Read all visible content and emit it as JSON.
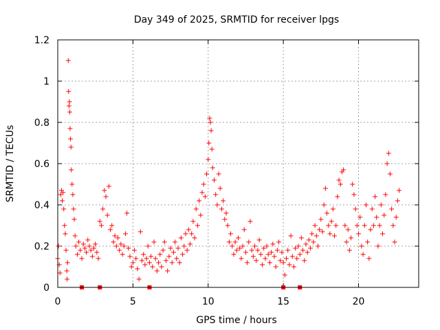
{
  "chart_data": {
    "type": "scatter",
    "title": "Day 349 of 2025, SRMTID for receiver lpgs",
    "xlabel": "GPS time / hours",
    "ylabel": "SRMTID / TECUs",
    "xlim": [
      0,
      24
    ],
    "ylim": [
      0,
      1.2
    ],
    "x_ticks": [
      0,
      5,
      10,
      15,
      20
    ],
    "y_ticks": [
      0,
      0.2,
      0.4,
      0.6,
      0.8,
      1,
      1.2
    ],
    "x_tick_labels": [
      "0",
      "5",
      "10",
      "15",
      "20"
    ],
    "y_tick_labels": [
      "0",
      "0.2",
      "0.4",
      "0.6",
      "0.8",
      "1",
      "1.2"
    ],
    "grid": true,
    "marker": "+",
    "series_color": "#ff0000",
    "series": [
      {
        "name": "SRMTID",
        "points": [
          [
            0.0,
            0.14
          ],
          [
            0.05,
            0.2
          ],
          [
            0.1,
            0.11
          ],
          [
            0.15,
            0.07
          ],
          [
            0.2,
            0.45
          ],
          [
            0.25,
            0.47
          ],
          [
            0.3,
            0.42
          ],
          [
            0.35,
            0.46
          ],
          [
            0.4,
            0.38
          ],
          [
            0.45,
            0.3
          ],
          [
            0.5,
            0.26
          ],
          [
            0.55,
            0.18
          ],
          [
            0.6,
            0.08
          ],
          [
            0.62,
            0.04
          ],
          [
            0.65,
            0.12
          ],
          [
            0.7,
            1.1
          ],
          [
            0.72,
            0.95
          ],
          [
            0.75,
            0.88
          ],
          [
            0.78,
            0.9
          ],
          [
            0.8,
            0.85
          ],
          [
            0.82,
            0.77
          ],
          [
            0.85,
            0.72
          ],
          [
            0.88,
            0.68
          ],
          [
            0.9,
            0.57
          ],
          [
            0.95,
            0.5
          ],
          [
            1.0,
            0.45
          ],
          [
            1.05,
            0.38
          ],
          [
            1.1,
            0.33
          ],
          [
            1.15,
            0.25
          ],
          [
            1.2,
            0.2
          ],
          [
            1.3,
            0.16
          ],
          [
            1.4,
            0.22
          ],
          [
            1.5,
            0.18
          ],
          [
            1.6,
            0.14
          ],
          [
            1.7,
            0.21
          ],
          [
            1.8,
            0.19
          ],
          [
            1.9,
            0.17
          ],
          [
            2.0,
            0.23
          ],
          [
            2.1,
            0.2
          ],
          [
            2.2,
            0.18
          ],
          [
            2.3,
            0.15
          ],
          [
            2.4,
            0.19
          ],
          [
            2.5,
            0.21
          ],
          [
            2.6,
            0.17
          ],
          [
            2.7,
            0.14
          ],
          [
            2.8,
            0.32
          ],
          [
            2.9,
            0.3
          ],
          [
            3.0,
            0.38
          ],
          [
            3.1,
            0.47
          ],
          [
            3.2,
            0.44
          ],
          [
            3.3,
            0.35
          ],
          [
            3.4,
            0.49
          ],
          [
            3.5,
            0.28
          ],
          [
            3.6,
            0.3
          ],
          [
            3.7,
            0.22
          ],
          [
            3.8,
            0.25
          ],
          [
            3.9,
            0.2
          ],
          [
            4.0,
            0.24
          ],
          [
            4.1,
            0.18
          ],
          [
            4.2,
            0.21
          ],
          [
            4.3,
            0.16
          ],
          [
            4.4,
            0.2
          ],
          [
            4.5,
            0.26
          ],
          [
            4.6,
            0.36
          ],
          [
            4.7,
            0.19
          ],
          [
            4.8,
            0.15
          ],
          [
            4.9,
            0.1
          ],
          [
            5.0,
            0.12
          ],
          [
            5.1,
            0.18
          ],
          [
            5.2,
            0.14
          ],
          [
            5.3,
            0.09
          ],
          [
            5.4,
            0.04
          ],
          [
            5.5,
            0.27
          ],
          [
            5.6,
            0.13
          ],
          [
            5.7,
            0.16
          ],
          [
            5.8,
            0.11
          ],
          [
            5.9,
            0.14
          ],
          [
            6.0,
            0.2
          ],
          [
            6.1,
            0.12
          ],
          [
            6.2,
            0.15
          ],
          [
            6.3,
            0.1
          ],
          [
            6.4,
            0.22
          ],
          [
            6.5,
            0.14
          ],
          [
            6.6,
            0.08
          ],
          [
            6.7,
            0.12
          ],
          [
            6.8,
            0.16
          ],
          [
            6.9,
            0.1
          ],
          [
            7.0,
            0.18
          ],
          [
            7.1,
            0.22
          ],
          [
            7.2,
            0.13
          ],
          [
            7.3,
            0.08
          ],
          [
            7.4,
            0.15
          ],
          [
            7.5,
            0.19
          ],
          [
            7.6,
            0.12
          ],
          [
            7.7,
            0.17
          ],
          [
            7.8,
            0.22
          ],
          [
            7.9,
            0.14
          ],
          [
            8.0,
            0.19
          ],
          [
            8.1,
            0.12
          ],
          [
            8.2,
            0.24
          ],
          [
            8.3,
            0.16
          ],
          [
            8.4,
            0.2
          ],
          [
            8.5,
            0.26
          ],
          [
            8.6,
            0.18
          ],
          [
            8.7,
            0.28
          ],
          [
            8.8,
            0.21
          ],
          [
            8.9,
            0.26
          ],
          [
            9.0,
            0.32
          ],
          [
            9.1,
            0.24
          ],
          [
            9.2,
            0.38
          ],
          [
            9.3,
            0.3
          ],
          [
            9.4,
            0.42
          ],
          [
            9.5,
            0.35
          ],
          [
            9.6,
            0.46
          ],
          [
            9.7,
            0.5
          ],
          [
            9.8,
            0.44
          ],
          [
            9.9,
            0.55
          ],
          [
            10.0,
            0.62
          ],
          [
            10.05,
            0.7
          ],
          [
            10.1,
            0.82
          ],
          [
            10.15,
            0.8
          ],
          [
            10.2,
            0.76
          ],
          [
            10.25,
            0.67
          ],
          [
            10.3,
            0.58
          ],
          [
            10.4,
            0.52
          ],
          [
            10.5,
            0.45
          ],
          [
            10.6,
            0.4
          ],
          [
            10.7,
            0.55
          ],
          [
            10.8,
            0.48
          ],
          [
            10.9,
            0.38
          ],
          [
            11.0,
            0.42
          ],
          [
            11.1,
            0.33
          ],
          [
            11.2,
            0.36
          ],
          [
            11.3,
            0.3
          ],
          [
            11.4,
            0.22
          ],
          [
            11.5,
            0.26
          ],
          [
            11.6,
            0.2
          ],
          [
            11.7,
            0.16
          ],
          [
            11.8,
            0.22
          ],
          [
            11.9,
            0.18
          ],
          [
            12.0,
            0.24
          ],
          [
            12.1,
            0.19
          ],
          [
            12.2,
            0.14
          ],
          [
            12.3,
            0.2
          ],
          [
            12.4,
            0.28
          ],
          [
            12.5,
            0.17
          ],
          [
            12.6,
            0.12
          ],
          [
            12.7,
            0.22
          ],
          [
            12.8,
            0.32
          ],
          [
            12.9,
            0.18
          ],
          [
            13.0,
            0.15
          ],
          [
            13.1,
            0.2
          ],
          [
            13.2,
            0.13
          ],
          [
            13.3,
            0.18
          ],
          [
            13.4,
            0.23
          ],
          [
            13.5,
            0.16
          ],
          [
            13.6,
            0.11
          ],
          [
            13.7,
            0.19
          ],
          [
            13.8,
            0.14
          ],
          [
            13.9,
            0.2
          ],
          [
            14.0,
            0.16
          ],
          [
            14.1,
            0.12
          ],
          [
            14.2,
            0.17
          ],
          [
            14.3,
            0.21
          ],
          [
            14.4,
            0.15
          ],
          [
            14.5,
            0.1
          ],
          [
            14.6,
            0.18
          ],
          [
            14.7,
            0.22
          ],
          [
            14.8,
            0.13
          ],
          [
            14.9,
            0.17
          ],
          [
            15.0,
            0.12
          ],
          [
            15.1,
            0.06
          ],
          [
            15.2,
            0.14
          ],
          [
            15.3,
            0.18
          ],
          [
            15.4,
            0.11
          ],
          [
            15.5,
            0.25
          ],
          [
            15.6,
            0.15
          ],
          [
            15.7,
            0.1
          ],
          [
            15.8,
            0.19
          ],
          [
            15.9,
            0.14
          ],
          [
            16.0,
            0.2
          ],
          [
            16.1,
            0.16
          ],
          [
            16.2,
            0.24
          ],
          [
            16.3,
            0.18
          ],
          [
            16.4,
            0.13
          ],
          [
            16.5,
            0.21
          ],
          [
            16.6,
            0.17
          ],
          [
            16.7,
            0.23
          ],
          [
            16.8,
            0.19
          ],
          [
            16.9,
            0.26
          ],
          [
            17.0,
            0.22
          ],
          [
            17.1,
            0.3
          ],
          [
            17.2,
            0.25
          ],
          [
            17.3,
            0.2
          ],
          [
            17.4,
            0.28
          ],
          [
            17.5,
            0.33
          ],
          [
            17.6,
            0.27
          ],
          [
            17.7,
            0.4
          ],
          [
            17.8,
            0.48
          ],
          [
            17.9,
            0.36
          ],
          [
            18.0,
            0.3
          ],
          [
            18.1,
            0.26
          ],
          [
            18.2,
            0.32
          ],
          [
            18.3,
            0.38
          ],
          [
            18.4,
            0.25
          ],
          [
            18.5,
            0.3
          ],
          [
            18.6,
            0.44
          ],
          [
            18.7,
            0.52
          ],
          [
            18.8,
            0.5
          ],
          [
            18.9,
            0.56
          ],
          [
            19.0,
            0.57
          ],
          [
            19.1,
            0.3
          ],
          [
            19.2,
            0.22
          ],
          [
            19.3,
            0.28
          ],
          [
            19.4,
            0.18
          ],
          [
            19.5,
            0.24
          ],
          [
            19.6,
            0.5
          ],
          [
            19.7,
            0.45
          ],
          [
            19.8,
            0.38
          ],
          [
            19.9,
            0.3
          ],
          [
            20.0,
            0.26
          ],
          [
            20.1,
            0.34
          ],
          [
            20.2,
            0.2
          ],
          [
            20.3,
            0.16
          ],
          [
            20.4,
            0.3
          ],
          [
            20.5,
            0.4
          ],
          [
            20.6,
            0.22
          ],
          [
            20.7,
            0.14
          ],
          [
            20.8,
            0.28
          ],
          [
            20.9,
            0.38
          ],
          [
            21.0,
            0.3
          ],
          [
            21.1,
            0.44
          ],
          [
            21.2,
            0.34
          ],
          [
            21.3,
            0.2
          ],
          [
            21.4,
            0.3
          ],
          [
            21.5,
            0.4
          ],
          [
            21.6,
            0.26
          ],
          [
            21.7,
            0.35
          ],
          [
            21.8,
            0.45
          ],
          [
            21.9,
            0.6
          ],
          [
            22.0,
            0.65
          ],
          [
            22.1,
            0.55
          ],
          [
            22.2,
            0.38
          ],
          [
            22.3,
            0.3
          ],
          [
            22.4,
            0.22
          ],
          [
            22.5,
            0.34
          ],
          [
            22.6,
            0.42
          ],
          [
            22.7,
            0.47
          ]
        ]
      }
    ],
    "x_axis_markers": [
      1.6,
      2.8,
      6.1,
      15.0,
      16.1
    ]
  }
}
